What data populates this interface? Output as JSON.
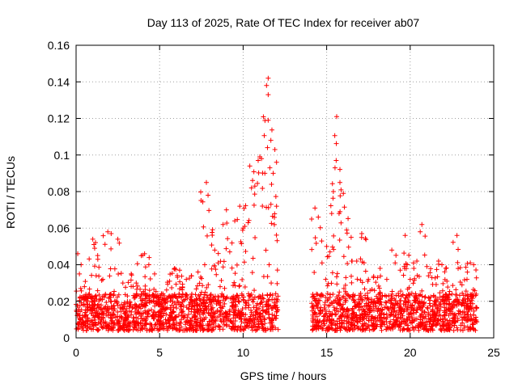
{
  "chart_data": {
    "type": "scatter",
    "title": "Day 113 of 2025, Rate Of TEC Index for receiver ab07",
    "xlabel": "GPS time / hours",
    "ylabel": "ROTI / TECUs",
    "xlim": [
      0,
      25
    ],
    "ylim": [
      0,
      0.16
    ],
    "x_ticks": [
      0,
      5,
      10,
      15,
      20,
      25
    ],
    "y_ticks": [
      0,
      0.02,
      0.04,
      0.06,
      0.08,
      0.1,
      0.12,
      0.14,
      0.16
    ],
    "x_tick_labels": [
      "0",
      "5",
      "10",
      "15",
      "20",
      "25"
    ],
    "y_tick_labels": [
      "0",
      "0.02",
      "0.04",
      "0.06",
      "0.08",
      "0.1",
      "0.12",
      "0.14",
      "0.16"
    ],
    "grid": true,
    "marker": "+",
    "marker_color": "#ff0000",
    "data_gap_hours": [
      12.1,
      14.1
    ],
    "series": [
      {
        "points": [
          [
            0.1,
            0.046
          ],
          [
            0.2,
            0.035
          ],
          [
            0.3,
            0.04
          ],
          [
            0.5,
            0.028
          ],
          [
            0.8,
            0.024
          ],
          [
            1.0,
            0.054
          ],
          [
            1.3,
            0.043
          ],
          [
            1.6,
            0.032
          ],
          [
            1.9,
            0.058
          ],
          [
            2.1,
            0.057
          ],
          [
            2.5,
            0.054
          ],
          [
            2.8,
            0.03
          ],
          [
            3.3,
            0.035
          ],
          [
            3.6,
            0.03
          ],
          [
            3.9,
            0.045
          ],
          [
            4.1,
            0.046
          ],
          [
            4.4,
            0.026
          ],
          [
            4.7,
            0.035
          ],
          [
            5.2,
            0.024
          ],
          [
            5.6,
            0.031
          ],
          [
            5.9,
            0.038
          ],
          [
            6.2,
            0.037
          ],
          [
            6.6,
            0.032
          ],
          [
            6.9,
            0.034
          ],
          [
            7.3,
            0.036
          ],
          [
            7.7,
            0.04
          ],
          [
            7.8,
            0.085
          ],
          [
            7.9,
            0.078
          ],
          [
            8.3,
            0.048
          ],
          [
            8.5,
            0.041
          ],
          [
            8.8,
            0.062
          ],
          [
            9.0,
            0.07
          ],
          [
            9.2,
            0.047
          ],
          [
            9.5,
            0.064
          ],
          [
            9.8,
            0.072
          ],
          [
            10.0,
            0.06
          ],
          [
            10.1,
            0.061
          ],
          [
            10.3,
            0.063
          ],
          [
            10.4,
            0.094
          ],
          [
            10.5,
            0.082
          ],
          [
            10.7,
            0.083
          ],
          [
            10.9,
            0.097
          ],
          [
            11.0,
            0.099
          ],
          [
            11.1,
            0.098
          ],
          [
            11.3,
            0.09
          ],
          [
            11.4,
            0.138
          ],
          [
            11.5,
            0.142
          ],
          [
            11.5,
            0.133
          ],
          [
            11.5,
            0.119
          ],
          [
            11.6,
            0.093
          ],
          [
            11.7,
            0.084
          ],
          [
            11.8,
            0.09
          ],
          [
            11.9,
            0.103
          ],
          [
            12.0,
            0.096
          ],
          [
            12.0,
            0.072
          ],
          [
            14.1,
            0.065
          ],
          [
            14.3,
            0.071
          ],
          [
            14.5,
            0.066
          ],
          [
            14.7,
            0.053
          ],
          [
            15.0,
            0.05
          ],
          [
            15.2,
            0.047
          ],
          [
            15.3,
            0.068
          ],
          [
            15.4,
            0.08
          ],
          [
            15.5,
            0.093
          ],
          [
            15.6,
            0.121
          ],
          [
            15.8,
            0.069
          ],
          [
            16.0,
            0.079
          ],
          [
            16.2,
            0.059
          ],
          [
            16.5,
            0.042
          ],
          [
            16.8,
            0.042
          ],
          [
            17.1,
            0.057
          ],
          [
            17.5,
            0.032
          ],
          [
            17.8,
            0.033
          ],
          [
            18.2,
            0.038
          ],
          [
            18.6,
            0.032
          ],
          [
            18.9,
            0.048
          ],
          [
            19.1,
            0.041
          ],
          [
            19.4,
            0.037
          ],
          [
            19.7,
            0.056
          ],
          [
            20.0,
            0.032
          ],
          [
            20.2,
            0.041
          ],
          [
            20.4,
            0.042
          ],
          [
            20.6,
            0.058
          ],
          [
            20.7,
            0.062
          ],
          [
            21.0,
            0.039
          ],
          [
            21.3,
            0.033
          ],
          [
            21.7,
            0.042
          ],
          [
            21.9,
            0.04
          ],
          [
            22.2,
            0.031
          ],
          [
            22.5,
            0.024
          ],
          [
            22.8,
            0.056
          ],
          [
            23.1,
            0.029
          ],
          [
            23.4,
            0.032
          ],
          [
            23.6,
            0.041
          ],
          [
            23.8,
            0.04
          ]
        ]
      }
    ]
  }
}
